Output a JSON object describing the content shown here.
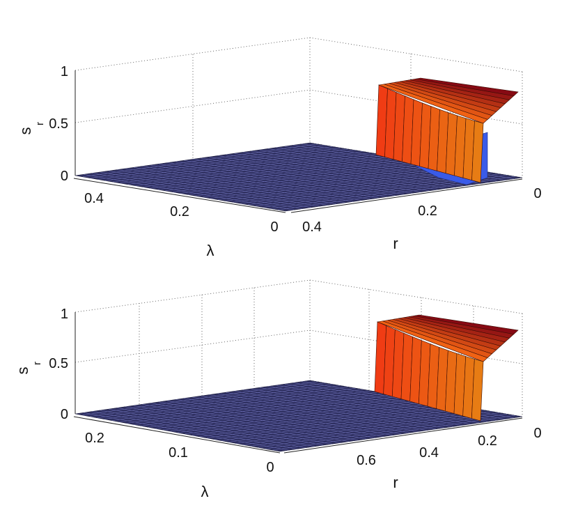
{
  "chart_data": [
    {
      "type": "surface",
      "zlabel": "s",
      "zlabel_sub": "r",
      "xlabel": "λ",
      "ylabel": "r",
      "zticks": [
        "0",
        "0.5",
        "1"
      ],
      "lambda_ticks": [
        "0.4",
        "0.2",
        "0"
      ],
      "r_ticks": [
        "0.4",
        "0.2",
        "0"
      ],
      "zlim": [
        0,
        1
      ],
      "lambda_range": [
        0,
        0.5
      ],
      "r_range": [
        0,
        0.45
      ],
      "grid": true,
      "colormap": "jet",
      "surface": {
        "description_values": {
          "low_region_sr": 0,
          "high_region_sr_max": 0.96,
          "step_region_r_max": 0.08,
          "step_region_lambda_max": 0.18
        }
      }
    },
    {
      "type": "surface",
      "zlabel": "s",
      "zlabel_sub": "r",
      "xlabel": "λ",
      "ylabel": "r",
      "zticks": [
        "0",
        "0.5",
        "1"
      ],
      "lambda_ticks": [
        "0.2",
        "0.1",
        "0"
      ],
      "r_ticks": [
        "0.6",
        "0.4",
        "0.2",
        "0"
      ],
      "zlim": [
        0,
        1
      ],
      "lambda_range": [
        0,
        0.25
      ],
      "r_range": [
        0,
        0.8
      ],
      "grid": true,
      "colormap": "jet",
      "surface": {
        "description_values": {
          "low_region_sr": 0,
          "high_region_sr_max": 0.96,
          "step_region_r_max": 0.12,
          "step_region_lambda_max": 0.09
        }
      }
    }
  ]
}
